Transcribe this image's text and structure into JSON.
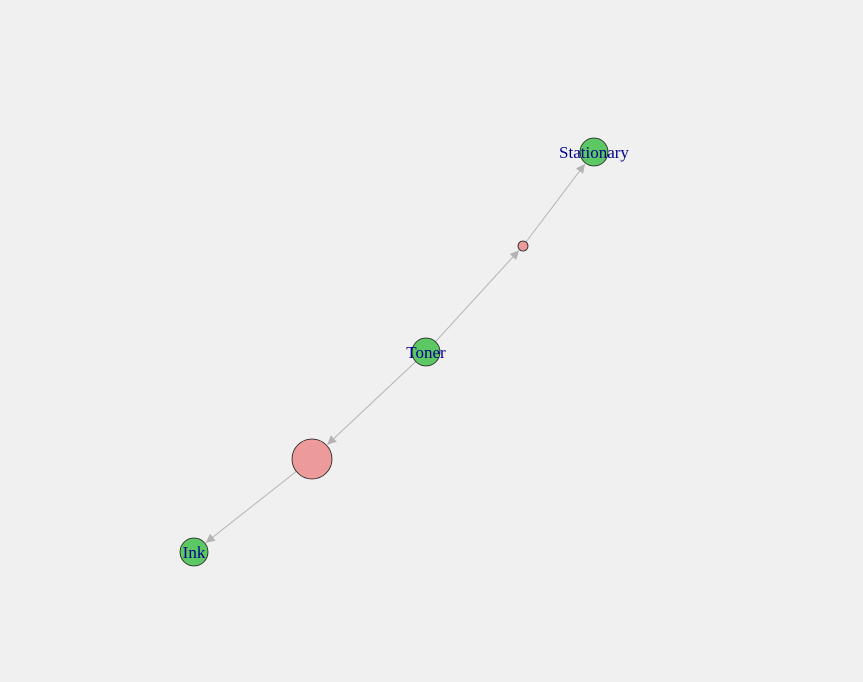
{
  "graph": {
    "colors": {
      "background": "#f0f0f0",
      "item_node_fill": "#5cc863",
      "rule_node_fill": "#ec9a9a",
      "node_stroke": "#1a1a1a",
      "edge": "#b3b3b3",
      "label": "#00008b"
    },
    "nodes": [
      {
        "id": "stationary",
        "kind": "item",
        "label": "Stationary"
      },
      {
        "id": "rule-small",
        "kind": "rule",
        "label": ""
      },
      {
        "id": "toner",
        "kind": "item",
        "label": "Toner"
      },
      {
        "id": "rule-large",
        "kind": "rule",
        "label": ""
      },
      {
        "id": "ink",
        "kind": "item",
        "label": "Ink"
      }
    ],
    "edges": [
      {
        "from": "toner",
        "to": "rule-small"
      },
      {
        "from": "rule-small",
        "to": "stationary"
      },
      {
        "from": "toner",
        "to": "rule-large"
      },
      {
        "from": "rule-large",
        "to": "ink"
      }
    ]
  }
}
